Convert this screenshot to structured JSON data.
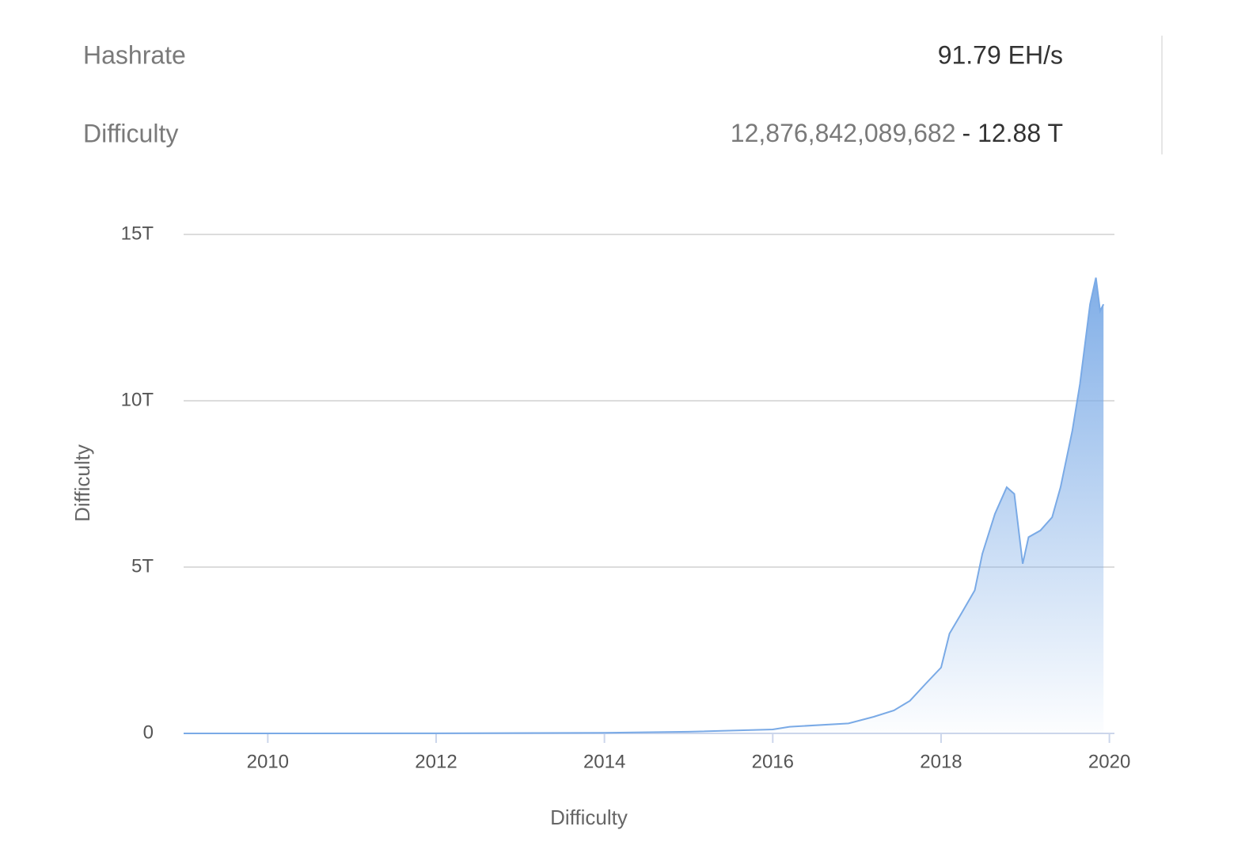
{
  "stats": [
    {
      "label": "Hashrate",
      "value": "91.79 EH/s"
    },
    {
      "label": "Difficulty",
      "value_full": "12,876,842,089,682",
      "value_short": "- 12.88 T"
    }
  ],
  "chart_data": {
    "type": "area",
    "x_label": "Difficulty",
    "y_label": "Difficulty",
    "x": [
      2009.0,
      2010.0,
      2012.0,
      2014.0,
      2015.0,
      2016.0,
      2016.2,
      2016.9,
      2017.2,
      2017.44,
      2017.63,
      2017.82,
      2018.0,
      2018.1,
      2018.24,
      2018.4,
      2018.49,
      2018.64,
      2018.78,
      2018.87,
      2018.97,
      2019.04,
      2019.18,
      2019.32,
      2019.42,
      2019.56,
      2019.65,
      2019.77,
      2019.84,
      2019.89,
      2019.93
    ],
    "series": [
      {
        "name": "Difficulty",
        "color": "#7aaae6",
        "values": [
          0,
          1000000000.0,
          3000000000.0,
          20000000000.0,
          50000000000.0,
          120000000000.0,
          200000000000.0,
          300000000000.0,
          500000000000.0,
          690000000000.0,
          980000000000.0,
          1500000000000.0,
          1980000000000.0,
          3000000000000.0,
          3600000000000.0,
          4300000000000.0,
          5400000000000.0,
          6600000000000.0,
          7400000000000.0,
          7200000000000.0,
          5100000000000.0,
          5900000000000.0,
          6100000000000.0,
          6500000000000.0,
          7400000000000.0,
          9100000000000.0,
          10500000000000.0,
          12900000000000.0,
          13700000000000.0,
          12700000000000.0,
          12900000000000.0
        ]
      }
    ],
    "xlim": [
      2009.0,
      2020.06
    ],
    "xticks": [
      2010,
      2012,
      2014,
      2016,
      2018,
      2020
    ],
    "ylim": [
      0,
      15000000000000
    ],
    "yticks": [
      0,
      {
        "value": 5000000000000,
        "label": "5T"
      },
      {
        "value": 10000000000000,
        "label": "10T"
      },
      {
        "value": 15000000000000,
        "label": "15T"
      }
    ],
    "grid": true
  }
}
